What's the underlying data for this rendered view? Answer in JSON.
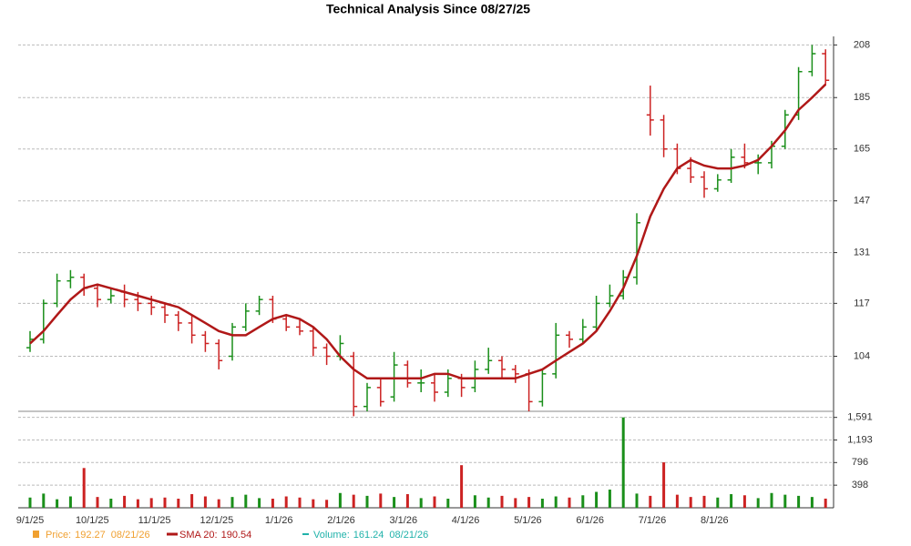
{
  "chart_data": {
    "type": "ohlc",
    "title": "Technical Analysis Since 08/27/25",
    "xticks": [
      "9/1/25",
      "10/1/25",
      "11/1/25",
      "12/1/25",
      "1/1/26",
      "2/1/26",
      "3/1/26",
      "4/1/26",
      "5/1/26",
      "6/1/26",
      "7/1/26",
      "8/1/26"
    ],
    "ylim": [
      92,
      212
    ],
    "yticks": [
      104,
      117,
      131,
      147,
      165,
      185,
      208
    ],
    "log_scale": true,
    "grid": true,
    "up_color": "#1a8f1a",
    "down_color": "#cc2222",
    "ohlc": [
      [
        106,
        110,
        105,
        108
      ],
      [
        108,
        118,
        107,
        117
      ],
      [
        117,
        125,
        116,
        123
      ],
      [
        123,
        126,
        121,
        124
      ],
      [
        124,
        125,
        119,
        121
      ],
      [
        121,
        122,
        116,
        118
      ],
      [
        118,
        121,
        117,
        119
      ],
      [
        120,
        122,
        116,
        118
      ],
      [
        118,
        120,
        115,
        117
      ],
      [
        117,
        119,
        114,
        116
      ],
      [
        116,
        117,
        112,
        114
      ],
      [
        114,
        115,
        110,
        112
      ],
      [
        112,
        114,
        107,
        109
      ],
      [
        109,
        110,
        105,
        107
      ],
      [
        107,
        108,
        101,
        103
      ],
      [
        104,
        112,
        103,
        111
      ],
      [
        111,
        117,
        110,
        115
      ],
      [
        115,
        119,
        114,
        118
      ],
      [
        118,
        119,
        112,
        113
      ],
      [
        113,
        114,
        110,
        111
      ],
      [
        111,
        113,
        109,
        110
      ],
      [
        110,
        111,
        104,
        106
      ],
      [
        106,
        107,
        102,
        104
      ],
      [
        104,
        109,
        103,
        107
      ],
      [
        104,
        105,
        91,
        93
      ],
      [
        93,
        98,
        92,
        97
      ],
      [
        97,
        99,
        93,
        94
      ],
      [
        95,
        105,
        94,
        102
      ],
      [
        102,
        103,
        97,
        98
      ],
      [
        98,
        101,
        96,
        98
      ],
      [
        98,
        100,
        94,
        96
      ],
      [
        96,
        101,
        95,
        99
      ],
      [
        99,
        100,
        95,
        97
      ],
      [
        97,
        103,
        96,
        101
      ],
      [
        101,
        106,
        100,
        103
      ],
      [
        103,
        104,
        99,
        101
      ],
      [
        101,
        102,
        98,
        100
      ],
      [
        100,
        101,
        92,
        94
      ],
      [
        94,
        101,
        93,
        100
      ],
      [
        100,
        112,
        99,
        109
      ],
      [
        109,
        110,
        106,
        108
      ],
      [
        108,
        113,
        107,
        111
      ],
      [
        111,
        119,
        110,
        117
      ],
      [
        117,
        122,
        116,
        119
      ],
      [
        119,
        126,
        118,
        124
      ],
      [
        124,
        143,
        122,
        140
      ],
      [
        178,
        190,
        170,
        176
      ],
      [
        176,
        178,
        162,
        165
      ],
      [
        165,
        167,
        156,
        158
      ],
      [
        158,
        162,
        153,
        155
      ],
      [
        155,
        157,
        148,
        151
      ],
      [
        151,
        156,
        150,
        154
      ],
      [
        154,
        165,
        153,
        162
      ],
      [
        162,
        167,
        158,
        160
      ],
      [
        160,
        163,
        156,
        160
      ],
      [
        160,
        168,
        158,
        166
      ],
      [
        166,
        180,
        165,
        178
      ],
      [
        178,
        198,
        176,
        196
      ],
      [
        196,
        208,
        194,
        204
      ],
      [
        204,
        206,
        190,
        192.27
      ]
    ],
    "sma": {
      "color": "#b01818",
      "values": [
        107,
        110,
        114,
        118,
        121,
        122,
        121,
        120,
        119,
        118,
        117,
        116,
        114,
        112,
        110,
        109,
        109,
        111,
        113,
        114,
        113,
        111,
        108,
        104,
        101,
        99,
        99,
        99,
        99,
        99,
        100,
        100,
        99,
        99,
        99,
        99,
        99,
        100,
        101,
        103,
        105,
        107,
        110,
        115,
        121,
        130,
        142,
        151,
        158,
        161,
        159,
        158,
        158,
        159,
        161,
        166,
        172,
        180,
        185,
        190.54
      ]
    },
    "volume": {
      "ylim": [
        0,
        1650
      ],
      "yticks": [
        398,
        796,
        {
          "value": 1193,
          "label": "1,193"
        },
        {
          "value": 1591,
          "label": "1,591"
        }
      ],
      "values": [
        180,
        250,
        150,
        200,
        700,
        190,
        160,
        210,
        150,
        170,
        180,
        160,
        240,
        200,
        150,
        190,
        230,
        170,
        160,
        200,
        180,
        150,
        140,
        260,
        230,
        210,
        250,
        190,
        240,
        170,
        200,
        160,
        750,
        220,
        180,
        210,
        170,
        190,
        160,
        200,
        180,
        220,
        280,
        320,
        1591,
        250,
        210,
        800,
        230,
        190,
        210,
        180,
        240,
        220,
        170,
        260,
        230,
        210,
        190,
        161.24
      ]
    },
    "legend": [
      {
        "label": "Price:",
        "value": 192.27,
        "date": "08/21/26",
        "color": "#f0a030"
      },
      {
        "label": "SMA 20:",
        "value": 190.54,
        "color": "#b01818"
      },
      {
        "label": "Volume:",
        "value": 161.24,
        "date": "08/21/26",
        "color": "#20b2aa"
      }
    ]
  }
}
